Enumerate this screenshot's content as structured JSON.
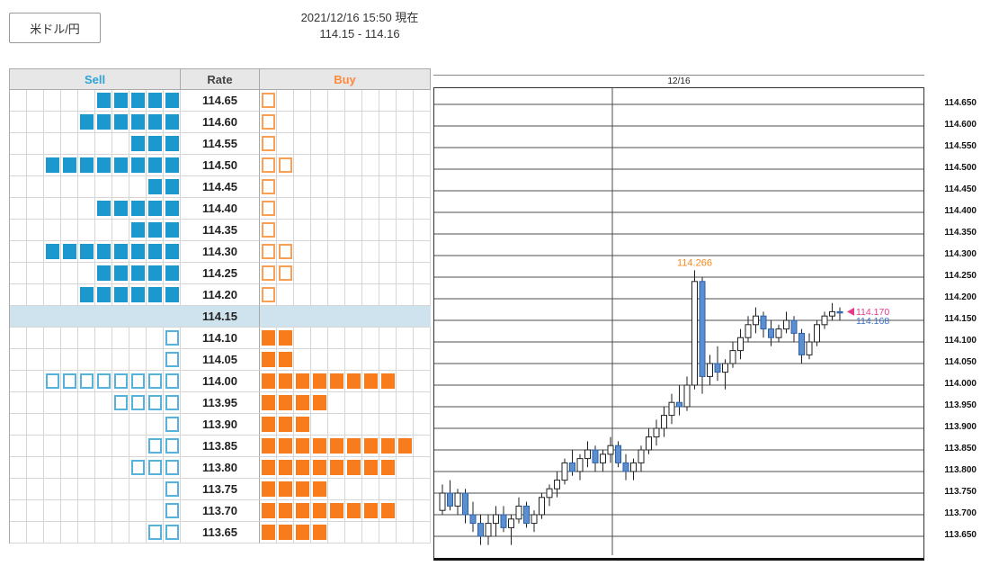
{
  "header": {
    "pair_label": "米ドル/円",
    "timestamp": "2021/12/16 15:50 現在",
    "rate_range": "114.15 - 114.16"
  },
  "orderbook": {
    "columns": {
      "sell": "Sell",
      "rate": "Rate",
      "buy": "Buy"
    },
    "grid_cells": 10,
    "current_rate": "114.15",
    "colors": {
      "sell": "#1b98cd",
      "buy": "#f87c1c",
      "highlight": "#cfe3ee"
    },
    "rows": [
      {
        "rate": "114.65",
        "sell": 5,
        "buy": 1
      },
      {
        "rate": "114.60",
        "sell": 6,
        "buy": 1
      },
      {
        "rate": "114.55",
        "sell": 3,
        "buy": 1
      },
      {
        "rate": "114.50",
        "sell": 8,
        "buy": 2
      },
      {
        "rate": "114.45",
        "sell": 2,
        "buy": 1
      },
      {
        "rate": "114.40",
        "sell": 5,
        "buy": 1
      },
      {
        "rate": "114.35",
        "sell": 3,
        "buy": 1
      },
      {
        "rate": "114.30",
        "sell": 8,
        "buy": 2
      },
      {
        "rate": "114.25",
        "sell": 5,
        "buy": 2
      },
      {
        "rate": "114.20",
        "sell": 6,
        "buy": 1
      },
      {
        "rate": "114.15",
        "sell": 0,
        "buy": 0,
        "current": true
      },
      {
        "rate": "114.10",
        "sell": 1,
        "buy": 2
      },
      {
        "rate": "114.05",
        "sell": 1,
        "buy": 2
      },
      {
        "rate": "114.00",
        "sell": 8,
        "buy": 8
      },
      {
        "rate": "113.95",
        "sell": 4,
        "buy": 4
      },
      {
        "rate": "113.90",
        "sell": 1,
        "buy": 3
      },
      {
        "rate": "113.85",
        "sell": 2,
        "buy": 9
      },
      {
        "rate": "113.80",
        "sell": 3,
        "buy": 8
      },
      {
        "rate": "113.75",
        "sell": 1,
        "buy": 4
      },
      {
        "rate": "113.70",
        "sell": 1,
        "buy": 8
      },
      {
        "rate": "113.65",
        "sell": 2,
        "buy": 4
      }
    ]
  },
  "chart": {
    "date_label": "12/16",
    "high_annotation": "114.266",
    "annotation_color": "#f8881c",
    "grid_color": "#4d4d4d",
    "up_fill": "#ffffff",
    "up_stroke": "#222222",
    "down_fill": "#5b8fd0",
    "down_stroke": "#2d5fa8",
    "price_labels": [
      "114.650",
      "114.600",
      "114.550",
      "114.500",
      "114.450",
      "114.400",
      "114.350",
      "114.300",
      "114.250",
      "114.200",
      "114.150",
      "114.100",
      "114.050",
      "114.000",
      "113.950",
      "113.900",
      "113.850",
      "113.800",
      "113.750",
      "113.700",
      "113.650"
    ],
    "current_prices": [
      {
        "label": "114.170",
        "value": 114.17,
        "color": "#e8388a"
      },
      {
        "label": "114.168",
        "value": 114.168,
        "color": "#3a6fc4"
      }
    ],
    "chart_data": {
      "type": "candlestick",
      "x_period_label": "12/16",
      "y_min": 113.65,
      "y_max": 114.65,
      "y_step": 0.05,
      "high_label": 114.266,
      "candles": [
        [
          113.71,
          113.77,
          113.7,
          113.75
        ],
        [
          113.75,
          113.78,
          113.71,
          113.72
        ],
        [
          113.72,
          113.76,
          113.7,
          113.75
        ],
        [
          113.75,
          113.76,
          113.68,
          113.7
        ],
        [
          113.7,
          113.73,
          113.66,
          113.68
        ],
        [
          113.68,
          113.7,
          113.63,
          113.65
        ],
        [
          113.65,
          113.7,
          113.63,
          113.68
        ],
        [
          113.68,
          113.72,
          113.65,
          113.7
        ],
        [
          113.7,
          113.72,
          113.66,
          113.67
        ],
        [
          113.67,
          113.7,
          113.63,
          113.69
        ],
        [
          113.69,
          113.74,
          113.68,
          113.72
        ],
        [
          113.72,
          113.73,
          113.67,
          113.68
        ],
        [
          113.68,
          113.71,
          113.66,
          113.7
        ],
        [
          113.7,
          113.75,
          113.69,
          113.74
        ],
        [
          113.74,
          113.77,
          113.72,
          113.76
        ],
        [
          113.76,
          113.8,
          113.74,
          113.78
        ],
        [
          113.78,
          113.83,
          113.77,
          113.82
        ],
        [
          113.82,
          113.85,
          113.79,
          113.8
        ],
        [
          113.8,
          113.84,
          113.78,
          113.83
        ],
        [
          113.83,
          113.87,
          113.81,
          113.85
        ],
        [
          113.85,
          113.86,
          113.8,
          113.82
        ],
        [
          113.82,
          113.85,
          113.8,
          113.84
        ],
        [
          113.84,
          113.88,
          113.82,
          113.86
        ],
        [
          113.86,
          113.87,
          113.81,
          113.82
        ],
        [
          113.82,
          113.84,
          113.78,
          113.8
        ],
        [
          113.8,
          113.83,
          113.78,
          113.82
        ],
        [
          113.82,
          113.86,
          113.8,
          113.85
        ],
        [
          113.85,
          113.9,
          113.84,
          113.88
        ],
        [
          113.88,
          113.92,
          113.86,
          113.9
        ],
        [
          113.9,
          113.95,
          113.88,
          113.93
        ],
        [
          113.93,
          113.98,
          113.91,
          113.96
        ],
        [
          113.96,
          114.0,
          113.93,
          113.95
        ],
        [
          113.95,
          114.02,
          113.94,
          114.0
        ],
        [
          114.0,
          114.266,
          113.99,
          114.24
        ],
        [
          114.24,
          114.25,
          113.98,
          114.02
        ],
        [
          114.02,
          114.07,
          114.0,
          114.05
        ],
        [
          114.05,
          114.09,
          114.01,
          114.03
        ],
        [
          114.03,
          114.06,
          113.99,
          114.05
        ],
        [
          114.05,
          114.1,
          114.04,
          114.08
        ],
        [
          114.08,
          114.13,
          114.06,
          114.11
        ],
        [
          114.11,
          114.16,
          114.1,
          114.14
        ],
        [
          114.14,
          114.18,
          114.12,
          114.16
        ],
        [
          114.16,
          114.17,
          114.11,
          114.13
        ],
        [
          114.13,
          114.15,
          114.09,
          114.11
        ],
        [
          114.11,
          114.14,
          114.1,
          114.13
        ],
        [
          114.13,
          114.17,
          114.12,
          114.15
        ],
        [
          114.15,
          114.16,
          114.1,
          114.12
        ],
        [
          114.12,
          114.13,
          114.05,
          114.07
        ],
        [
          114.07,
          114.12,
          114.06,
          114.1
        ],
        [
          114.1,
          114.15,
          114.09,
          114.14
        ],
        [
          114.14,
          114.17,
          114.13,
          114.16
        ],
        [
          114.16,
          114.19,
          114.15,
          114.17
        ],
        [
          114.17,
          114.18,
          114.15,
          114.168
        ]
      ]
    }
  }
}
